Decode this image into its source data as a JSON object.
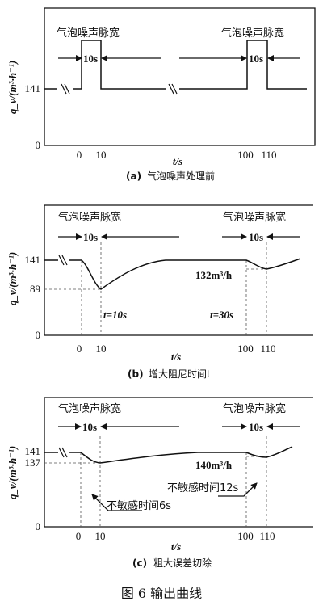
{
  "panels": [
    {
      "pulse_label_left": "气泡噪声脉宽",
      "pulse_label_right": "气泡噪声脉宽",
      "pulse_width_left": "10s",
      "pulse_width_right": "10s",
      "y_axis_label": "q_v/(m³·h⁻¹)",
      "y_ticks": [
        "141",
        "0"
      ],
      "x_ticks": [
        "0",
        "10",
        "100",
        "110"
      ],
      "x_axis_label": "t/s",
      "caption_tag": "(a)",
      "caption": "气泡噪声处理前"
    },
    {
      "pulse_label_left": "气泡噪声脉宽",
      "pulse_label_right": "气泡噪声脉宽",
      "pulse_width_left": "10s",
      "pulse_width_right": "10s",
      "y_axis_label": "q_v/(m³·h⁻¹)",
      "y_ticks": [
        "141",
        "89",
        "0"
      ],
      "x_ticks": [
        "0",
        "10",
        "100",
        "110"
      ],
      "x_axis_label": "t/s",
      "annot_t_left": "t=10s",
      "annot_t_right": "t=30s",
      "annot_flow": "132m³/h",
      "caption_tag": "(b)",
      "caption": "增大阻尼时间t"
    },
    {
      "pulse_label_left": "气泡噪声脉宽",
      "pulse_label_right": "气泡噪声脉宽",
      "pulse_width_left": "10s",
      "pulse_width_right": "10s",
      "y_axis_label": "q_v/(m³·h⁻¹)",
      "y_ticks": [
        "141",
        "137",
        "0"
      ],
      "x_ticks": [
        "0",
        "10",
        "100",
        "110"
      ],
      "x_axis_label": "t/s",
      "annot_flow": "140m³/h",
      "annot_insens_left": "不敏感时间6s",
      "annot_insens_right": "不敏感时间12s",
      "caption_tag": "(c)",
      "caption": "粗大误差切除"
    }
  ],
  "figure_caption": "图 6   输出曲线"
}
